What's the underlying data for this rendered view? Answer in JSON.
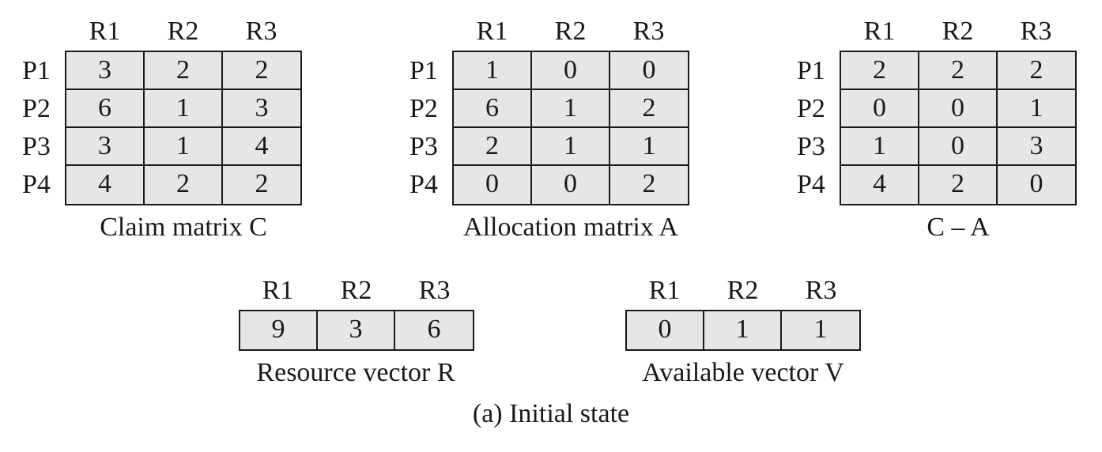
{
  "figure_caption": "(a) Initial state",
  "matrices": [
    {
      "id": "claim",
      "caption": "Claim matrix C",
      "col_headers": [
        "R1",
        "R2",
        "R3"
      ],
      "row_labels": [
        "P1",
        "P2",
        "P3",
        "P4"
      ],
      "rows": [
        [
          "3",
          "2",
          "2"
        ],
        [
          "6",
          "1",
          "3"
        ],
        [
          "3",
          "1",
          "4"
        ],
        [
          "4",
          "2",
          "2"
        ]
      ]
    },
    {
      "id": "allocation",
      "caption": "Allocation matrix A",
      "col_headers": [
        "R1",
        "R2",
        "R3"
      ],
      "row_labels": [
        "P1",
        "P2",
        "P3",
        "P4"
      ],
      "rows": [
        [
          "1",
          "0",
          "0"
        ],
        [
          "6",
          "1",
          "2"
        ],
        [
          "2",
          "1",
          "1"
        ],
        [
          "0",
          "0",
          "2"
        ]
      ]
    },
    {
      "id": "need",
      "caption": "C – A",
      "col_headers": [
        "R1",
        "R2",
        "R3"
      ],
      "row_labels": [
        "P1",
        "P2",
        "P3",
        "P4"
      ],
      "rows": [
        [
          "2",
          "2",
          "2"
        ],
        [
          "0",
          "0",
          "1"
        ],
        [
          "1",
          "0",
          "3"
        ],
        [
          "4",
          "2",
          "0"
        ]
      ]
    }
  ],
  "vectors": [
    {
      "id": "resource",
      "caption": "Resource vector R",
      "col_headers": [
        "R1",
        "R2",
        "R3"
      ],
      "values": [
        "9",
        "3",
        "6"
      ]
    },
    {
      "id": "available",
      "caption": "Available vector V",
      "col_headers": [
        "R1",
        "R2",
        "R3"
      ],
      "values": [
        "0",
        "1",
        "1"
      ]
    }
  ]
}
